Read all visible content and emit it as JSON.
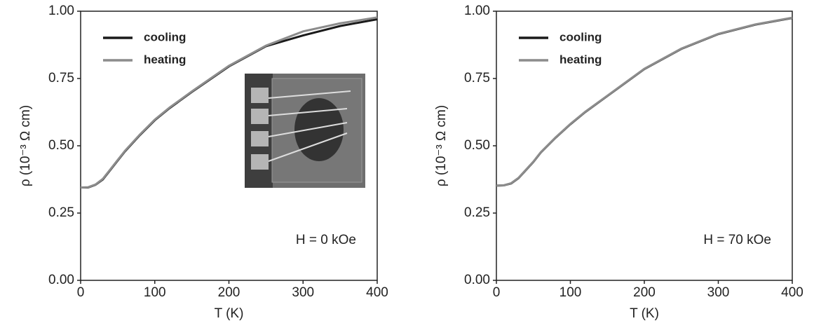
{
  "chart_data": [
    {
      "type": "line",
      "xlabel": "T (K)",
      "ylabel": "ρ (10⁻³ Ω cm)",
      "annotation": "H = 0 kOe",
      "legend": "upper left",
      "xlim": [
        0,
        400
      ],
      "xticks": [
        0,
        100,
        200,
        300,
        400
      ],
      "ylim": [
        0,
        1
      ],
      "yticks": [
        {
          "value": 0,
          "label": "0.00"
        },
        {
          "value": 0.25,
          "label": "0.25"
        },
        {
          "value": 0.5,
          "label": "0.50"
        },
        {
          "value": 0.75,
          "label": "0.75"
        },
        {
          "value": 1,
          "label": "1.00"
        }
      ],
      "x": [
        0,
        10,
        20,
        30,
        40,
        50,
        60,
        80,
        100,
        120,
        150,
        200,
        250,
        300,
        350,
        400
      ],
      "series": [
        {
          "name": "cooling",
          "color": "#1a1a1a",
          "values": [
            0.345,
            0.345,
            0.355,
            0.375,
            0.41,
            0.445,
            0.48,
            0.54,
            0.595,
            0.64,
            0.7,
            0.795,
            0.87,
            0.91,
            0.945,
            0.97
          ]
        },
        {
          "name": "heating",
          "color": "#8c8c8c",
          "values": [
            0.345,
            0.346,
            0.356,
            0.377,
            0.412,
            0.447,
            0.482,
            0.542,
            0.597,
            0.642,
            0.702,
            0.797,
            0.872,
            0.925,
            0.955,
            0.977
          ]
        }
      ]
    },
    {
      "type": "line",
      "xlabel": "T (K)",
      "ylabel": "ρ (10⁻³ Ω cm)",
      "annotation": "H = 70 kOe",
      "legend": "upper left",
      "xlim": [
        0,
        400
      ],
      "xticks": [
        0,
        100,
        200,
        300,
        400
      ],
      "ylim": [
        0,
        1
      ],
      "yticks": [
        {
          "value": 0,
          "label": "0.00"
        },
        {
          "value": 0.25,
          "label": "0.25"
        },
        {
          "value": 0.5,
          "label": "0.50"
        },
        {
          "value": 0.75,
          "label": "0.75"
        },
        {
          "value": 1,
          "label": "1.00"
        }
      ],
      "x": [
        0,
        10,
        20,
        30,
        40,
        50,
        60,
        80,
        100,
        120,
        150,
        200,
        250,
        300,
        350,
        400
      ],
      "series": [
        {
          "name": "cooling",
          "color": "#1a1a1a",
          "values": [
            0.352,
            0.353,
            0.36,
            0.38,
            0.41,
            0.44,
            0.475,
            0.53,
            0.58,
            0.625,
            0.685,
            0.785,
            0.86,
            0.915,
            0.95,
            0.975
          ]
        },
        {
          "name": "heating",
          "color": "#8c8c8c",
          "values": [
            0.352,
            0.353,
            0.361,
            0.381,
            0.411,
            0.441,
            0.476,
            0.531,
            0.581,
            0.626,
            0.686,
            0.786,
            0.861,
            0.916,
            0.951,
            0.976
          ]
        }
      ]
    }
  ]
}
